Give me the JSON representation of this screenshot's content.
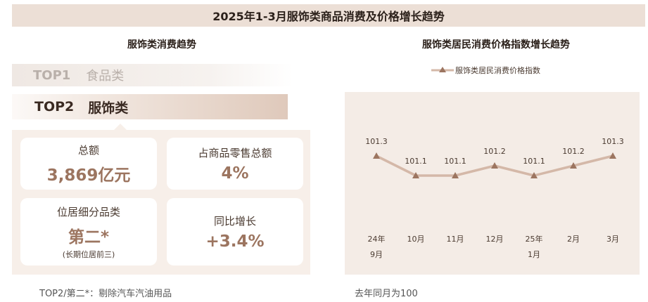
{
  "header": {
    "title": "2025年1-3月服饰类商品消费及价格增长趋势"
  },
  "left": {
    "title": "服饰类消费趋势",
    "rank1": {
      "tag": "TOP1",
      "name": "食品类"
    },
    "rank2": {
      "tag": "TOP2",
      "name": "服饰类"
    },
    "cards": [
      {
        "label": "总额",
        "value": "3,869亿元",
        "sub": ""
      },
      {
        "label": "占商品零售总额",
        "value": "4%",
        "sub": ""
      },
      {
        "label": "位居细分品类",
        "value": "第二*",
        "sub": "(长期位居前三)"
      },
      {
        "label": "同比增长",
        "value": "+3.4%",
        "sub": ""
      }
    ],
    "note": "TOP2/第二*：剔除汽车汽油用品"
  },
  "right": {
    "title": "服饰类居民消费价格指数增长趋势",
    "note": "去年同月为100"
  },
  "colors": {
    "line": "#d4b8a8",
    "marker": "#9c7560",
    "panel": "#f4ece6"
  },
  "chart_data": {
    "type": "line",
    "categories": [
      "24年9月",
      "10月",
      "11月",
      "12月",
      "25年1月",
      "2月",
      "3月"
    ],
    "category_lines": [
      [
        "24年",
        "9月"
      ],
      [
        "10月"
      ],
      [
        "11月"
      ],
      [
        "12月"
      ],
      [
        "25年",
        "1月"
      ],
      [
        "2月"
      ],
      [
        "3月"
      ]
    ],
    "series": [
      {
        "name": "服饰类居民消费价格指数",
        "values": [
          101.3,
          101.1,
          101.1,
          101.2,
          101.1,
          101.2,
          101.3
        ]
      }
    ],
    "data_labels": [
      "101.3",
      "101.1",
      "101.1",
      "101.2",
      "101.1",
      "101.2",
      "101.3"
    ],
    "ylim": [
      100.9,
      101.5
    ],
    "grid": false,
    "legend": "top-center"
  }
}
